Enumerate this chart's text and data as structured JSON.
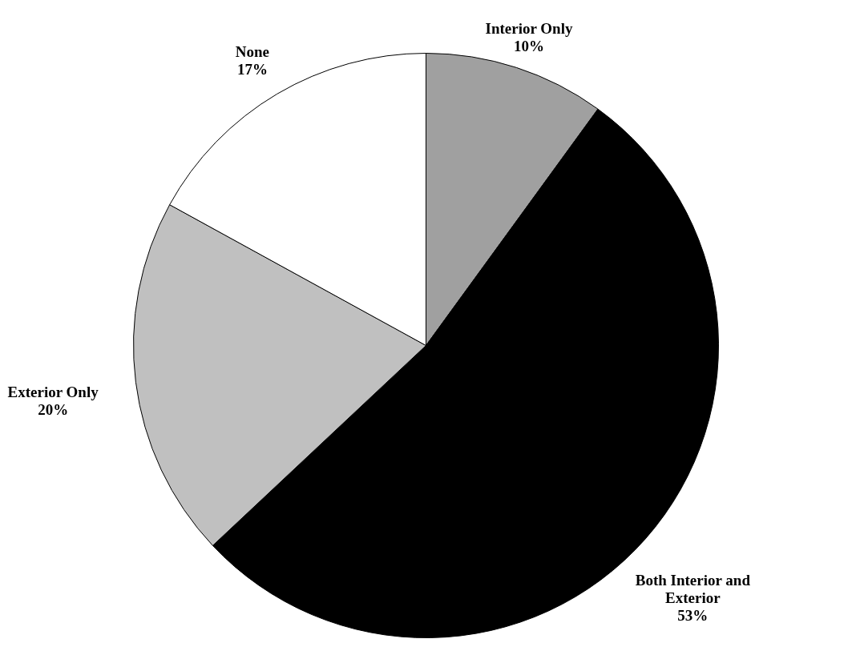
{
  "chart_data": {
    "type": "pie",
    "categories": [
      "Interior Only",
      "Both Interior and Exterior",
      "Exterior Only",
      "None"
    ],
    "values": [
      10,
      53,
      20,
      17
    ],
    "colors": [
      "#a0a0a0",
      "#000000",
      "#c0c0c0",
      "#ffffff"
    ],
    "value_labels": [
      "10%",
      "53%",
      "20%",
      "17%"
    ]
  }
}
